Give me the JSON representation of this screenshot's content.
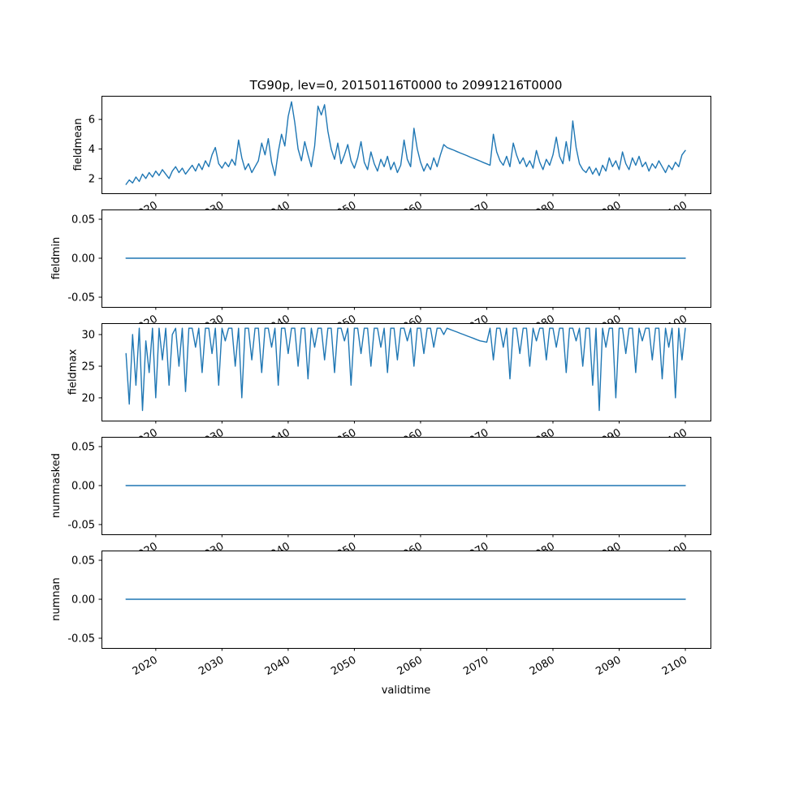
{
  "figure": {
    "background": "#ffffff",
    "line_color": "#1f77b4"
  },
  "chart_data": {
    "type": "line",
    "title": "TG90p, lev=0, 20150116T0000 to 20991216T0000",
    "xlabel": "validtime",
    "x_ticks": [
      2020,
      2030,
      2040,
      2050,
      2060,
      2070,
      2080,
      2090,
      2100
    ],
    "xlim": [
      2011.8,
      2103.8
    ],
    "x_start": 2015.5,
    "x_step": 0.5,
    "legend": "none",
    "grid": false,
    "subplots": [
      {
        "ylabel": "fieldmean",
        "ylim": [
          1.0,
          7.6
        ],
        "ytick_values": [
          2,
          4,
          6
        ],
        "ytick_labels": [
          "2",
          "4",
          "6"
        ],
        "values": [
          1.6,
          1.9,
          1.7,
          2.1,
          1.8,
          2.3,
          2.0,
          2.4,
          2.1,
          2.5,
          2.2,
          2.6,
          2.3,
          2.0,
          2.5,
          2.8,
          2.4,
          2.7,
          2.3,
          2.6,
          2.9,
          2.5,
          3.0,
          2.6,
          3.2,
          2.8,
          3.6,
          4.1,
          3.0,
          2.7,
          3.1,
          2.8,
          3.3,
          2.9,
          4.6,
          3.4,
          2.6,
          3.0,
          2.4,
          2.8,
          3.2,
          4.4,
          3.6,
          4.7,
          3.1,
          2.2,
          3.8,
          5.0,
          4.2,
          6.2,
          7.2,
          5.8,
          4.0,
          3.2,
          4.5,
          3.6,
          2.8,
          4.2,
          6.9,
          6.3,
          7.0,
          5.2,
          4.0,
          3.3,
          4.4,
          3.0,
          3.6,
          4.3,
          3.2,
          2.7,
          3.4,
          4.5,
          3.1,
          2.6,
          3.8,
          3.0,
          2.5,
          3.3,
          2.8,
          3.5,
          2.6,
          3.1,
          2.4,
          2.9,
          4.6,
          3.3,
          2.8,
          5.4,
          4.0,
          3.1,
          2.5,
          3.0,
          2.6,
          3.4,
          2.8,
          3.6,
          4.3,
          4.1,
          4.01,
          3.92,
          3.82,
          3.73,
          3.64,
          3.55,
          3.45,
          3.36,
          3.27,
          3.18,
          3.08,
          2.99,
          2.9,
          5.0,
          3.8,
          3.2,
          2.9,
          3.5,
          2.8,
          4.4,
          3.6,
          3.0,
          3.4,
          2.8,
          3.2,
          2.7,
          3.9,
          3.1,
          2.6,
          3.3,
          2.9,
          3.6,
          4.8,
          3.5,
          3.0,
          4.5,
          3.2,
          5.9,
          4.1,
          3.0,
          2.6,
          2.4,
          2.8,
          2.3,
          2.7,
          2.2,
          2.9,
          2.5,
          3.4,
          2.8,
          3.2,
          2.6,
          3.8,
          3.0,
          2.6,
          3.4,
          2.9,
          3.5,
          2.8,
          3.1,
          2.5,
          3.0,
          2.7,
          3.2,
          2.8,
          2.4,
          2.9,
          2.6,
          3.1,
          2.8,
          3.6,
          3.9
        ]
      },
      {
        "ylabel": "fieldmin",
        "ylim": [
          -0.0625,
          0.0625
        ],
        "ytick_values": [
          -0.05,
          0.0,
          0.05
        ],
        "ytick_labels": [
          "-0.05",
          "0.00",
          "0.05"
        ],
        "x": [
          2015.5,
          2100
        ],
        "values": [
          0,
          0
        ]
      },
      {
        "ylabel": "fieldmax",
        "ylim": [
          16.4,
          31.8
        ],
        "ytick_values": [
          20,
          25,
          30
        ],
        "ytick_labels": [
          "20",
          "25",
          "30"
        ],
        "values": [
          27,
          19,
          30,
          22,
          31,
          18,
          29,
          24,
          31,
          20,
          31,
          26,
          31,
          22,
          30,
          31,
          25,
          31,
          21,
          31,
          31,
          28,
          31,
          24,
          31,
          31,
          27,
          31,
          22,
          31,
          29,
          31,
          31,
          25,
          31,
          20,
          31,
          31,
          26,
          31,
          31,
          24,
          31,
          31,
          28,
          31,
          22,
          31,
          31,
          27,
          31,
          31,
          25,
          31,
          31,
          23,
          31,
          28,
          31,
          31,
          26,
          31,
          31,
          24,
          31,
          31,
          29,
          31,
          22,
          31,
          31,
          27,
          31,
          31,
          25,
          31,
          31,
          28,
          31,
          24,
          31,
          31,
          26,
          31,
          31,
          29,
          31,
          25,
          31,
          31,
          27,
          31,
          31,
          28,
          31,
          31,
          30,
          31,
          30.8,
          30.6,
          30.4,
          30.2,
          30.0,
          29.8,
          29.6,
          29.4,
          29.2,
          29.0,
          28.9,
          28.8,
          31,
          26,
          31,
          31,
          28,
          31,
          23,
          31,
          31,
          27,
          31,
          31,
          25,
          31,
          29,
          31,
          31,
          26,
          31,
          31,
          28,
          31,
          31,
          24,
          31,
          31,
          29,
          31,
          25,
          31,
          31,
          22,
          31,
          18,
          31,
          28,
          31,
          31,
          20,
          31,
          31,
          27,
          31,
          31,
          24,
          31,
          29,
          31,
          31,
          26,
          31,
          31,
          23,
          31,
          28,
          31,
          20,
          31,
          26,
          31
        ]
      },
      {
        "ylabel": "nummasked",
        "ylim": [
          -0.0625,
          0.0625
        ],
        "ytick_values": [
          -0.05,
          0.0,
          0.05
        ],
        "ytick_labels": [
          "-0.05",
          "0.00",
          "0.05"
        ],
        "x": [
          2015.5,
          2100
        ],
        "values": [
          0,
          0
        ]
      },
      {
        "ylabel": "numnan",
        "ylim": [
          -0.0625,
          0.0625
        ],
        "ytick_values": [
          -0.05,
          0.0,
          0.05
        ],
        "ytick_labels": [
          "-0.05",
          "0.00",
          "0.05"
        ],
        "x": [
          2015.5,
          2100
        ],
        "values": [
          0,
          0
        ]
      }
    ]
  }
}
